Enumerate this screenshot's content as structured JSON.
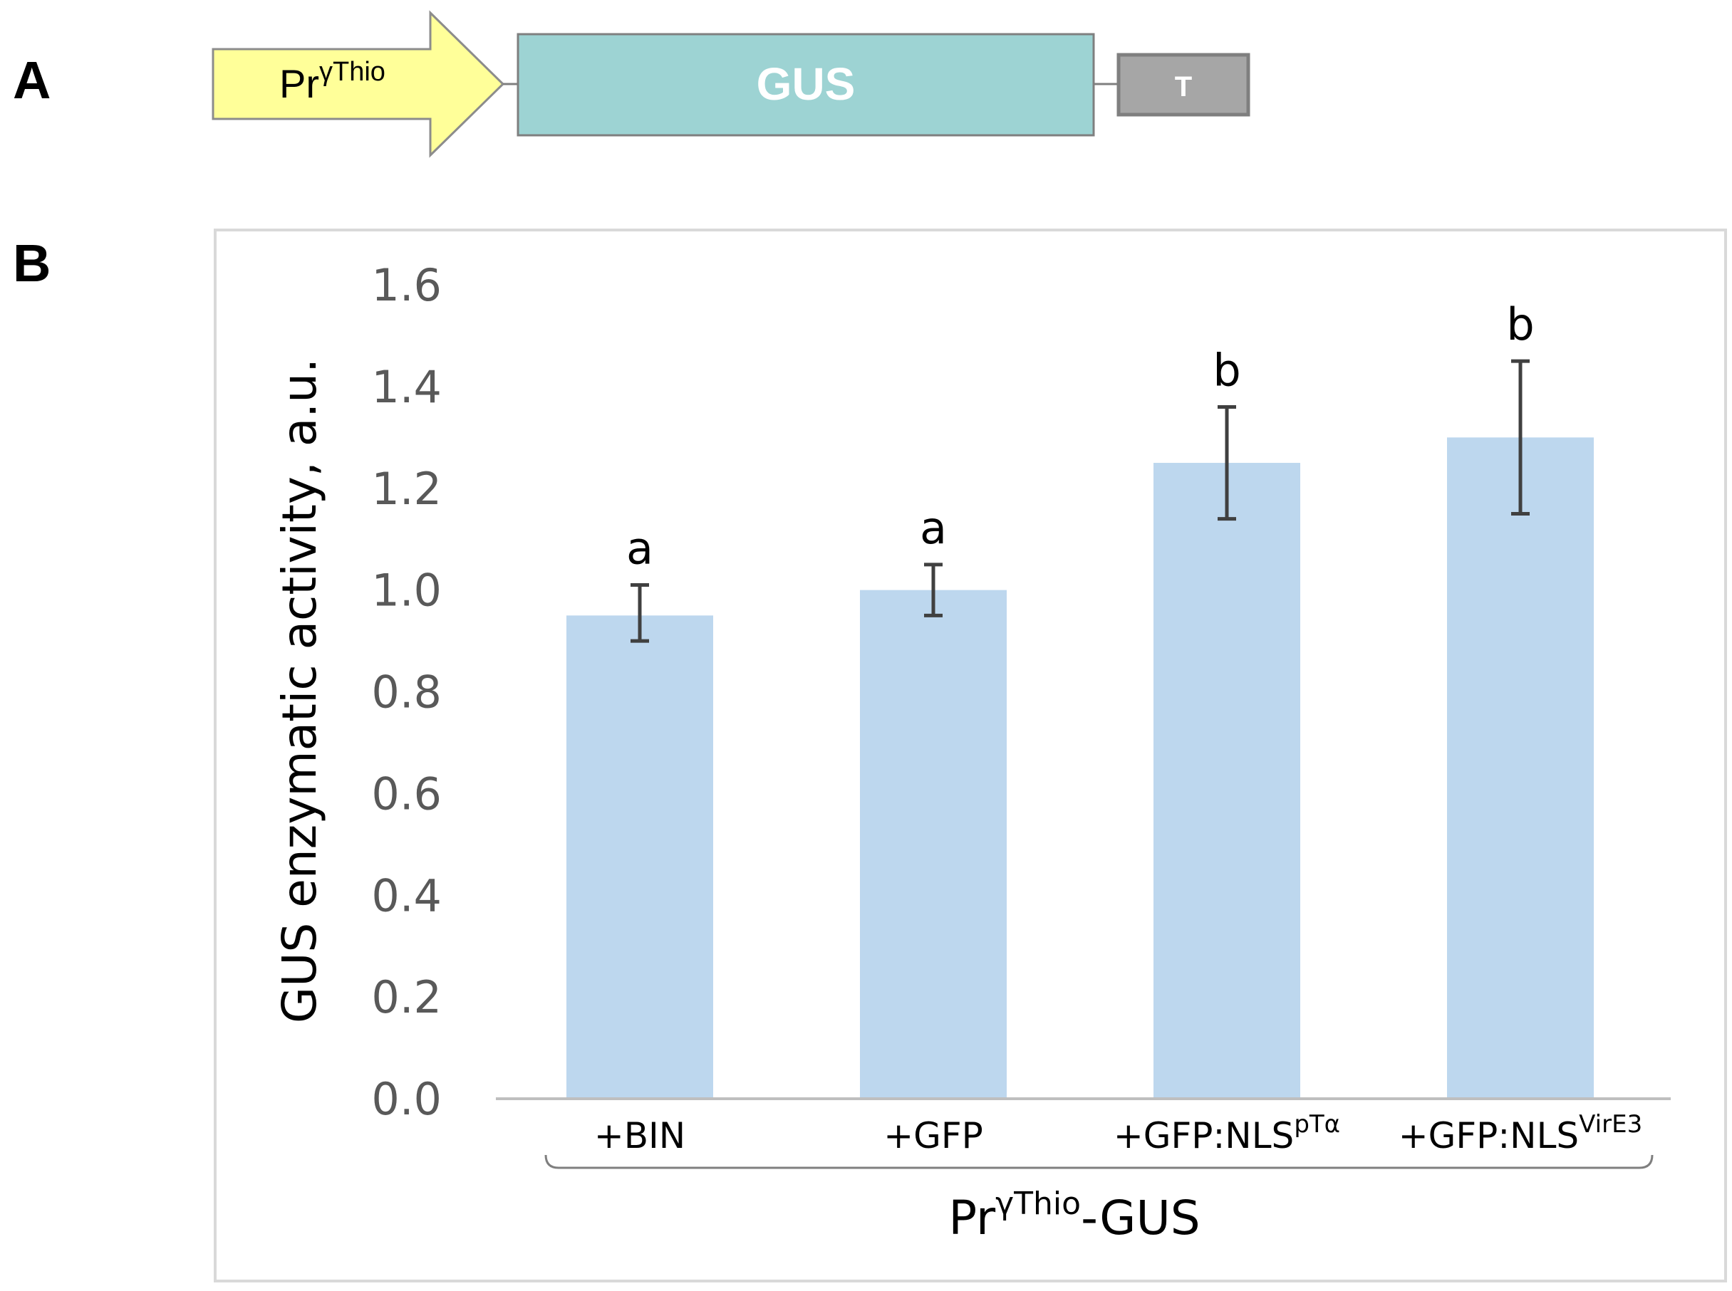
{
  "panel_a": {
    "label": "A",
    "promoter": {
      "base": "Pr",
      "sup": "γThio",
      "color": "#ffff99"
    },
    "gene": {
      "label": "GUS",
      "color": "#9dd3d3"
    },
    "terminator": {
      "label": "T",
      "color": "#a6a6a6"
    }
  },
  "panel_b": {
    "label": "B"
  },
  "chart_data": {
    "type": "bar",
    "ylabel": "GUS enzymatic activity, a.u.",
    "ylim": [
      0,
      1.6
    ],
    "yticks": [
      "0.0",
      "0.2",
      "0.4",
      "0.6",
      "0.8",
      "1.0",
      "1.2",
      "1.4",
      "1.6"
    ],
    "categories": [
      {
        "base": "+BIN",
        "sup": ""
      },
      {
        "base": "+GFP",
        "sup": ""
      },
      {
        "base": "+GFP:NLS",
        "sup": "pTα"
      },
      {
        "base": "+GFP:NLS",
        "sup": "VirE3"
      }
    ],
    "values": [
      0.95,
      1.0,
      1.25,
      1.3
    ],
    "error_low": [
      0.9,
      0.95,
      1.14,
      1.15
    ],
    "error_high": [
      1.01,
      1.05,
      1.36,
      1.45
    ],
    "significance": [
      "a",
      "a",
      "b",
      "b"
    ],
    "group_label": {
      "base": "Pr",
      "sup": "γThio",
      "suffix": "-GUS"
    },
    "bar_color": "#bdd7ee",
    "error_color": "#404040",
    "grid": false,
    "legend": "none"
  }
}
